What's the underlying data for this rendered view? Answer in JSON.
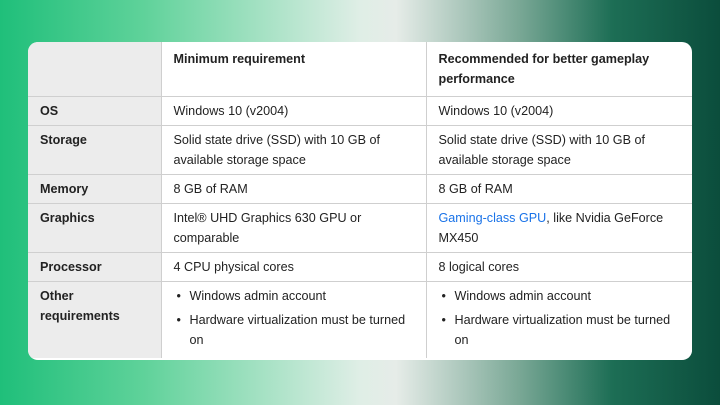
{
  "header": {
    "col1": "",
    "col2": "Minimum requirement",
    "col3": "Recommended for better gameplay performance"
  },
  "rows": [
    {
      "label": "OS",
      "min": "Windows 10 (v2004)",
      "rec": "Windows 10 (v2004)"
    },
    {
      "label": "Storage",
      "min": "Solid state drive (SSD) with 10 GB of available storage space",
      "rec": "Solid state drive (SSD) with 10 GB of available storage space"
    },
    {
      "label": "Memory",
      "min": "8 GB of RAM",
      "rec": "8 GB of RAM"
    },
    {
      "label": "Graphics",
      "min": "Intel® UHD Graphics 630 GPU or comparable",
      "rec_link": "Gaming-class GPU",
      "rec": ", like Nvidia GeForce MX450"
    },
    {
      "label": "Processor",
      "min": "4 CPU physical cores",
      "rec": "8 logical cores"
    },
    {
      "label": "Other requirements",
      "min_items": [
        "Windows admin account",
        "Hardware virtualization must be turned on"
      ],
      "rec_items": [
        "Windows admin account",
        "Hardware virtualization must be turned on"
      ]
    }
  ],
  "colors": {
    "link": "#1a73e8",
    "label_bg": "#ececec"
  }
}
